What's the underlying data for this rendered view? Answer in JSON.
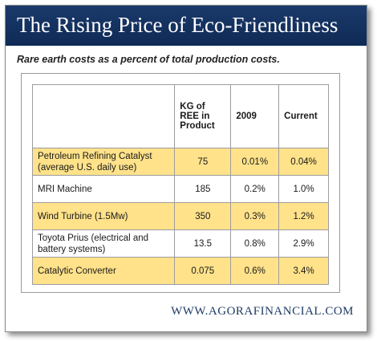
{
  "banner": {
    "title": "The Rising Price of Eco-Friendliness"
  },
  "subtitle": "Rare earth costs as a percent of total production costs.",
  "footer": "WWW.AGORAFINANCIAL.COM",
  "colors": {
    "banner": "#13336a",
    "highlight_row": "#ffe28a",
    "footer_text": "#1f3c66"
  },
  "chart_data": {
    "type": "table",
    "title": "The Rising Price of Eco-Friendliness",
    "subtitle": "Rare earth costs as a percent of total production costs.",
    "columns": [
      "",
      "KG of REE in Product",
      "2009",
      "Current"
    ],
    "rows": [
      {
        "label": "Petroleum Refining Catalyst (average U.S. daily use)",
        "kg": "75",
        "y2009": "0.01%",
        "current": "0.04%",
        "highlight": true
      },
      {
        "label": "MRI Machine",
        "kg": "185",
        "y2009": "0.2%",
        "current": "1.0%",
        "highlight": false
      },
      {
        "label": "Wind Turbine (1.5Mw)",
        "kg": "350",
        "y2009": "0.3%",
        "current": "1.2%",
        "highlight": true
      },
      {
        "label": "Toyota Prius (electrical and battery systems)",
        "kg": "13.5",
        "y2009": "0.8%",
        "current": "2.9%",
        "highlight": false
      },
      {
        "label": "Catalytic Converter",
        "kg": "0.075",
        "y2009": "0.6%",
        "current": "3.4%",
        "highlight": true
      }
    ]
  }
}
